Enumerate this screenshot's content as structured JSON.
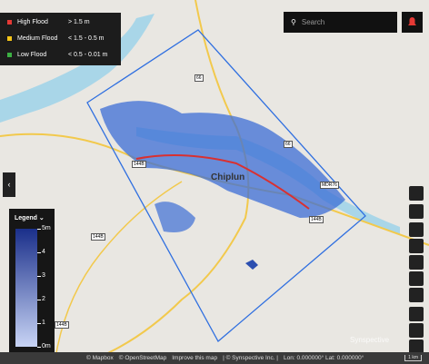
{
  "flood_legend": [
    {
      "label": "High Flood",
      "range": "> 1.5 m",
      "color": "#e53935"
    },
    {
      "label": "Medium Flood",
      "range": "< 1.5 - 0.5 m",
      "color": "#f5c518"
    },
    {
      "label": "Low Flood",
      "range": "< 0.5 - 0.01 m",
      "color": "#3cb043"
    }
  ],
  "search": {
    "placeholder": "Search"
  },
  "depth_legend": {
    "title": "Legend",
    "labels": [
      "5m",
      "4",
      "3",
      "2",
      "1",
      "0m"
    ]
  },
  "map_labels": {
    "town": "Chiplun",
    "shields": [
      "66",
      "66",
      "144B",
      "144B",
      "144B",
      "144B",
      "MDR76"
    ]
  },
  "footer": {
    "mapbox": "© Mapbox",
    "osm": "© OpenStreetMap",
    "improve": "Improve this map",
    "company": "| © Synspective Inc. |",
    "coords": "Lon: 0.000000° Lat: 0.000000°",
    "scale": "1 km"
  },
  "watermark": "Synspective"
}
